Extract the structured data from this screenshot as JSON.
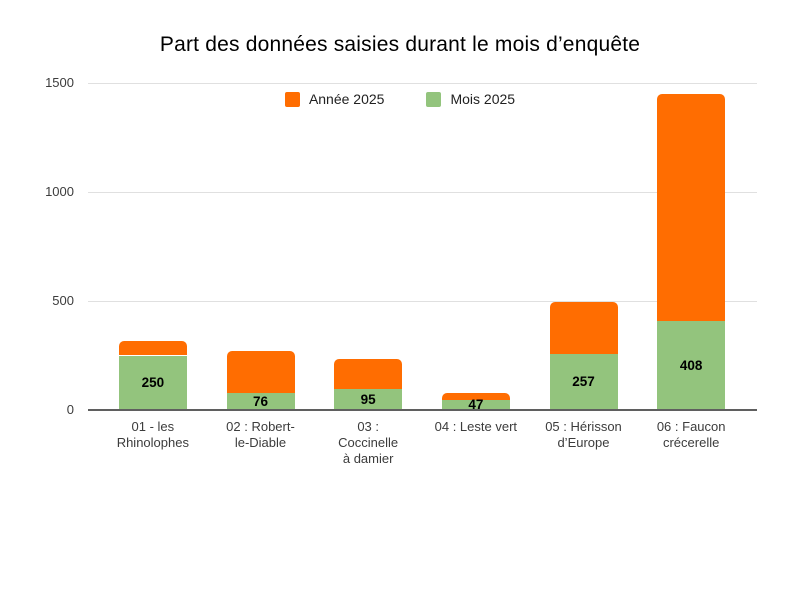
{
  "chart_data": {
    "type": "bar",
    "stacked": true,
    "title": "Part des données saisies durant le mois d’enquête",
    "categories": [
      "01 - les Rhinolophes",
      "02 : Robert-le-Diable",
      "03 : Coccinelle à damier",
      "04 : Leste vert",
      "05 : Hérisson d’Europe",
      "06 : Faucon crécerelle"
    ],
    "category_lines": [
      [
        "01 - les",
        "Rhinolophes"
      ],
      [
        "02 : Robert-",
        "le-Diable"
      ],
      [
        "03 :",
        "Coccinelle",
        "à damier"
      ],
      [
        "04 : Leste vert"
      ],
      [
        "05 : Hérisson",
        "d’Europe"
      ],
      [
        "06 : Faucon",
        "crécerelle"
      ]
    ],
    "series": [
      {
        "name": "Année 2025",
        "color": "#FF6D01",
        "values": [
          65,
          195,
          140,
          30,
          240,
          1040
        ]
      },
      {
        "name": "Mois 2025",
        "color": "#93C47D",
        "values": [
          250,
          76,
          95,
          47,
          257,
          408
        ],
        "data_labels": [
          "250",
          "76",
          "95",
          "47",
          "257",
          "408"
        ]
      }
    ],
    "stack_order_bottom_to_top": [
      "Mois 2025",
      "Année 2025"
    ],
    "approx_totals": [
      315,
      271,
      235,
      77,
      497,
      1448
    ],
    "ylim": [
      0,
      1500
    ],
    "yticks": [
      "0",
      "500",
      "1000",
      "1500"
    ],
    "grid": true,
    "legend_position": "top",
    "xlabel": "",
    "ylabel": ""
  },
  "colors": {
    "annee_2025": "#FF6D01",
    "mois_2025": "#93C47D",
    "gridline": "#e0e0e0",
    "axis_line": "#5f5f5f",
    "background": "#ffffff"
  }
}
